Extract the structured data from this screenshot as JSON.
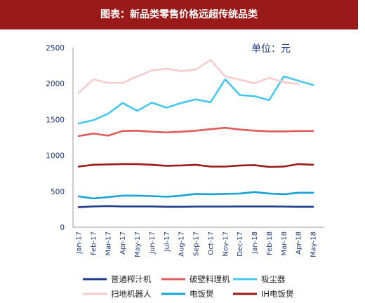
{
  "header": {
    "title": "图表：新品类零售价格远超传统品类"
  },
  "chart_data": {
    "type": "line",
    "unit_label": "单位：元",
    "x": [
      "Jan-17",
      "Feb-17",
      "Mar-17",
      "Apr-17",
      "May-17",
      "Jun-17",
      "Jul-17",
      "Aug-17",
      "Sep-17",
      "Oct-17",
      "Nov-17",
      "Dec-17",
      "Jan-18",
      "Feb-18",
      "Mar-18",
      "Apr-18",
      "May-18"
    ],
    "ylim": [
      0,
      2500
    ],
    "yticks": [
      0,
      500,
      1000,
      1500,
      2000,
      2500
    ],
    "grid": false,
    "legend_position": "bottom",
    "series": [
      {
        "name": "普通榨汁机",
        "color": "#1f3d8c",
        "values": [
          280,
          290,
          295,
          290,
          290,
          290,
          285,
          285,
          288,
          288,
          288,
          290,
          290,
          290,
          288,
          285,
          285
        ]
      },
      {
        "name": "破壁料理机",
        "color": "#e05b5b",
        "values": [
          1270,
          1305,
          1275,
          1340,
          1345,
          1330,
          1320,
          1330,
          1345,
          1365,
          1385,
          1360,
          1345,
          1335,
          1335,
          1340,
          1340
        ]
      },
      {
        "name": "吸尘器",
        "color": "#46c8ec",
        "values": [
          1445,
          1490,
          1580,
          1730,
          1620,
          1735,
          1665,
          1730,
          1780,
          1740,
          2060,
          1840,
          1825,
          1770,
          2100,
          2040,
          1980
        ]
      },
      {
        "name": "扫地机器人",
        "color": "#f6cccc",
        "values": [
          1870,
          2060,
          2010,
          2010,
          2100,
          2185,
          2205,
          2175,
          2195,
          2330,
          2100,
          2055,
          2005,
          2080,
          2020,
          1995,
          null
        ]
      },
      {
        "name": "电饭煲",
        "color": "#14a3d4",
        "values": [
          430,
          400,
          420,
          440,
          440,
          435,
          425,
          440,
          465,
          460,
          465,
          470,
          490,
          470,
          460,
          480,
          480
        ]
      },
      {
        "name": "IH电饭煲",
        "color": "#9a1a1a",
        "values": [
          845,
          870,
          875,
          880,
          880,
          870,
          855,
          860,
          870,
          845,
          845,
          860,
          865,
          840,
          845,
          880,
          870
        ]
      }
    ]
  }
}
